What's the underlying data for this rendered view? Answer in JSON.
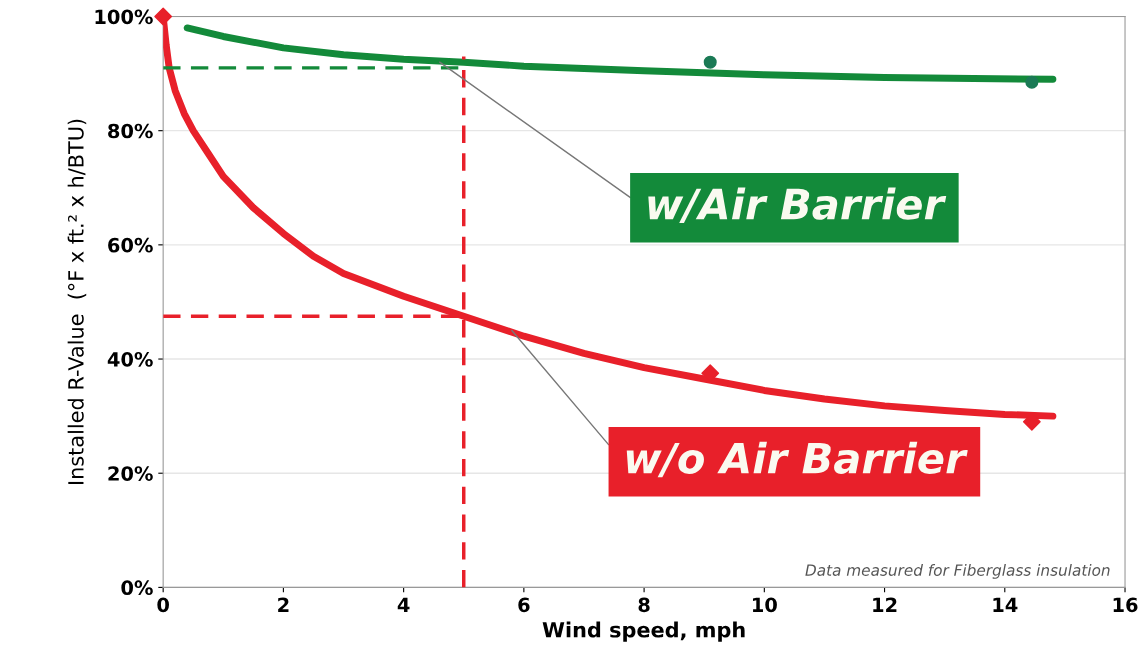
{
  "chart_data": {
    "type": "line",
    "xlabel": "Wind speed, mph",
    "ylabel": "Installed R-Value  (°F x ft.² x h/BTU)",
    "xlim": [
      0,
      16
    ],
    "xticks": [
      0,
      2,
      4,
      6,
      8,
      10,
      12,
      14,
      16
    ],
    "ylim": [
      0,
      100
    ],
    "yticks": [
      {
        "value": 0,
        "label": "0%"
      },
      {
        "value": 20,
        "label": "20%"
      },
      {
        "value": 40,
        "label": "40%"
      },
      {
        "value": 60,
        "label": "60%"
      },
      {
        "value": 80,
        "label": "80%"
      },
      {
        "value": 100,
        "label": "100%"
      }
    ],
    "grid": "y",
    "legend": false,
    "series": [
      {
        "color": "#138a3a",
        "x": [
          0.4,
          1,
          2,
          3,
          4,
          5,
          6,
          8,
          10,
          12,
          14.8
        ],
        "values": [
          98,
          96.5,
          94.5,
          93.3,
          92.5,
          92,
          91.3,
          90.5,
          89.8,
          89.3,
          89
        ]
      },
      {
        "color": "#e8202a",
        "x": [
          0,
          0.05,
          0.1,
          0.2,
          0.35,
          0.5,
          0.75,
          1,
          1.5,
          2,
          2.5,
          3,
          4,
          5,
          6,
          7,
          8,
          9,
          10,
          11,
          12,
          13,
          14,
          14.8
        ],
        "values": [
          100,
          95,
          91,
          87,
          83,
          80,
          76,
          72,
          66.5,
          62,
          58,
          55,
          51,
          47.5,
          44,
          41,
          38.5,
          36.5,
          34.5,
          33,
          31.8,
          31,
          30.3,
          30
        ]
      },
      {
        "type": "scatter",
        "color": "#1b7a55",
        "marker": "circle",
        "x": [
          9.1,
          14.45
        ],
        "values": [
          92,
          88.5
        ]
      },
      {
        "type": "scatter",
        "color": "#e8202a",
        "marker": "diamond",
        "x": [
          0,
          9.1,
          14.45
        ],
        "values": [
          100,
          37.5,
          29
        ]
      },
      {
        "color": "#138a3a",
        "line_style": "dashed",
        "x": [
          0,
          5
        ],
        "values": [
          91,
          91
        ]
      },
      {
        "color": "#e8202a",
        "line_style": "dashed",
        "x": [
          0,
          5
        ],
        "values": [
          47.5,
          47.5
        ]
      },
      {
        "color": "#e8202a",
        "line_style": "dashed",
        "x": [
          5,
          5
        ],
        "values": [
          0,
          93
        ]
      }
    ],
    "annotations": [
      {
        "text": "w/Air Barrier",
        "x": 4.6,
        "y": 92
      },
      {
        "text": "w/o Air Barrier",
        "x": 5.8,
        "y": 45
      },
      "Data measured for Fiberglass insulation"
    ]
  }
}
